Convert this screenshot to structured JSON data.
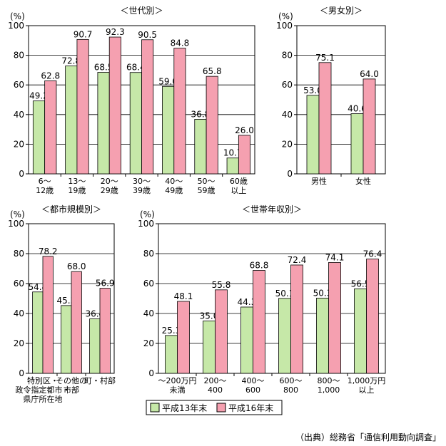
{
  "colors": {
    "series_a": "#c6e8a8",
    "series_b": "#f5a0b0",
    "stroke": "#000000"
  },
  "chart_data": [
    {
      "id": "age",
      "type": "bar",
      "title": "＜世代別＞",
      "unit_label": "(%)",
      "ylim": [
        0,
        100
      ],
      "yticks": [
        0,
        20,
        40,
        60,
        80,
        100
      ],
      "grid": true,
      "categories": [
        [
          "6～",
          "12歳"
        ],
        [
          "13～",
          "19歳"
        ],
        [
          "20～",
          "29歳"
        ],
        [
          "30～",
          "39歳"
        ],
        [
          "40～",
          "49歳"
        ],
        [
          "50～",
          "59歳"
        ],
        [
          "60歳",
          "以上"
        ]
      ],
      "series": [
        {
          "name": "平成13年末",
          "values": [
            49.2,
            72.8,
            68.5,
            68.4,
            59.0,
            36.8,
            10.7
          ]
        },
        {
          "name": "平成16年末",
          "values": [
            62.8,
            90.7,
            92.3,
            90.5,
            84.8,
            65.8,
            26.0
          ]
        }
      ]
    },
    {
      "id": "gender",
      "type": "bar",
      "title": "＜男女別＞",
      "unit_label": "(%)",
      "ylim": [
        0,
        100
      ],
      "yticks": [
        0,
        20,
        40,
        60,
        80,
        100
      ],
      "grid": true,
      "categories": [
        [
          "男性"
        ],
        [
          "女性"
        ]
      ],
      "series": [
        {
          "name": "平成13年末",
          "values": [
            53.0,
            40.6
          ]
        },
        {
          "name": "平成16年末",
          "values": [
            75.1,
            64.0
          ]
        }
      ]
    },
    {
      "id": "city",
      "type": "bar",
      "title": "＜都市規模別＞",
      "unit_label": "(%)",
      "ylim": [
        0,
        100
      ],
      "yticks": [
        0,
        20,
        40,
        60,
        80,
        100
      ],
      "grid": true,
      "categories": [
        [
          "特別区・",
          "政令指定都市・",
          "県庁所在地"
        ],
        [
          "その他の",
          "市部"
        ],
        [
          "町・村部"
        ]
      ],
      "series": [
        {
          "name": "平成13年末",
          "values": [
            54.4,
            45.3,
            36.4
          ]
        },
        {
          "name": "平成16年末",
          "values": [
            78.2,
            68.0,
            56.9
          ]
        }
      ]
    },
    {
      "id": "income",
      "type": "bar",
      "title": "＜世帯年収別＞",
      "unit_label": "(%)",
      "ylim": [
        0,
        100
      ],
      "yticks": [
        0,
        20,
        40,
        60,
        80,
        100
      ],
      "grid": true,
      "categories": [
        [
          "～200万円",
          "未満"
        ],
        [
          "200～",
          "400"
        ],
        [
          "400～",
          "600"
        ],
        [
          "600～",
          "800"
        ],
        [
          "800～",
          "1,000"
        ],
        [
          "1,000万円",
          "以上"
        ]
      ],
      "series": [
        {
          "name": "平成13年末",
          "values": [
            25.3,
            35.0,
            44.3,
            50.1,
            50.3,
            56.5
          ]
        },
        {
          "name": "平成16年末",
          "values": [
            48.1,
            55.8,
            68.8,
            72.4,
            74.1,
            76.4
          ]
        }
      ]
    }
  ],
  "legend": {
    "items": [
      "平成13年末",
      "平成16年末"
    ],
    "placement": "bottom-center"
  },
  "source": "（出典）総務省「通信利用動向調査」"
}
